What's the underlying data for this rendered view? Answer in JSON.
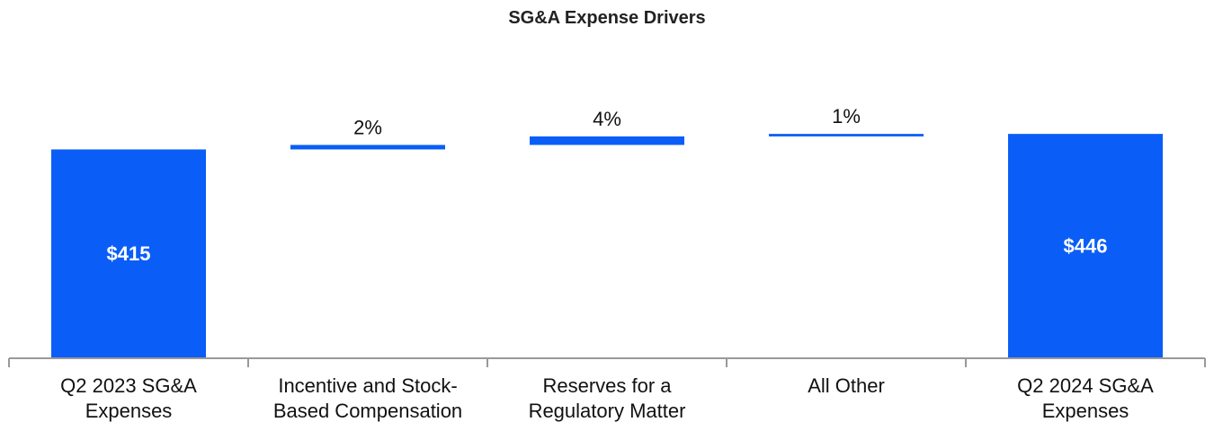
{
  "chart_data": {
    "type": "waterfall",
    "title": "SG&A Expense Drivers",
    "unit": "$M",
    "categories": [
      [
        "Q2 2023 SG&A",
        "Expenses"
      ],
      [
        "Incentive and Stock-",
        "Based Compensation"
      ],
      [
        "Reserves for a",
        "Regulatory Matter"
      ],
      [
        "All Other"
      ],
      [
        "Q2 2024 SG&A",
        "Expenses"
      ]
    ],
    "steps": [
      {
        "kind": "total",
        "value": 415,
        "label": "$415"
      },
      {
        "kind": "delta",
        "value": 9,
        "label": "2%"
      },
      {
        "kind": "delta",
        "value": 17,
        "label": "4%"
      },
      {
        "kind": "delta",
        "value": 5,
        "label": "1%"
      },
      {
        "kind": "total",
        "value": 446,
        "label": "$446"
      }
    ],
    "ylim": [
      0,
      500
    ],
    "colors": {
      "bar": "#0a5ef7",
      "axis": "#999999"
    }
  }
}
